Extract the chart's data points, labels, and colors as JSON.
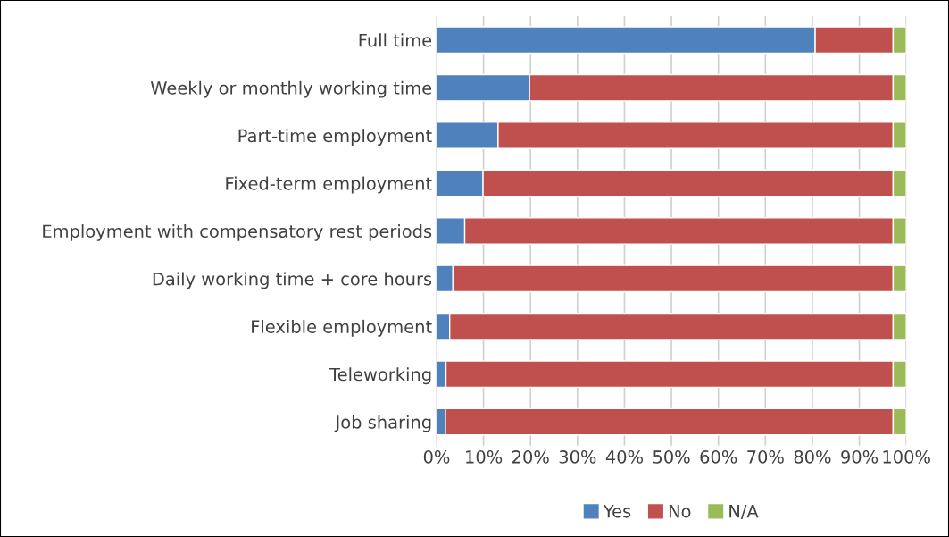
{
  "chart_data": {
    "type": "bar",
    "orientation": "horizontal",
    "stacked": true,
    "categories": [
      "Full time",
      "Weekly or monthly working time",
      "Part-time employment",
      "Fixed-term employment",
      "Employment with compensatory rest periods",
      "Daily working time + core hours",
      "Flexible employment",
      "Teleworking",
      "Job sharing"
    ],
    "series": [
      {
        "name": "Yes",
        "color": "#4f81bd",
        "values": [
          80.6,
          19.8,
          13.1,
          9.9,
          6.0,
          3.5,
          2.8,
          2.0,
          1.9
        ]
      },
      {
        "name": "No",
        "color": "#c0504d",
        "values": [
          16.6,
          77.4,
          84.1,
          87.3,
          91.2,
          93.7,
          94.4,
          95.2,
          95.3
        ]
      },
      {
        "name": "N/A",
        "color": "#9bbb59",
        "values": [
          2.8,
          2.8,
          2.8,
          2.8,
          2.8,
          2.8,
          2.8,
          2.8,
          2.8
        ]
      }
    ],
    "xlim": [
      0,
      100
    ],
    "xticks": [
      {
        "value": 0,
        "label": "0%"
      },
      {
        "value": 10,
        "label": "10%"
      },
      {
        "value": 20,
        "label": "20%"
      },
      {
        "value": 30,
        "label": "30%"
      },
      {
        "value": 40,
        "label": "40%"
      },
      {
        "value": 50,
        "label": "50%"
      },
      {
        "value": 60,
        "label": "60%"
      },
      {
        "value": 70,
        "label": "70%"
      },
      {
        "value": 80,
        "label": "80%"
      },
      {
        "value": 90,
        "label": "90%"
      },
      {
        "value": 100,
        "label": "100%"
      }
    ],
    "grid": "x",
    "legend": "bottom"
  }
}
